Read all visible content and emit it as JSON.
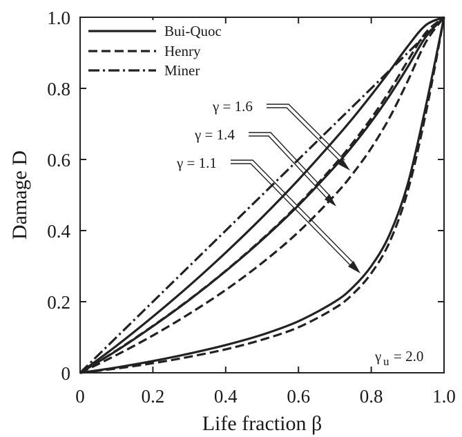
{
  "chart_data": {
    "type": "line",
    "xlabel": "Life fraction β",
    "ylabel": "Damage D",
    "xlim": [
      0,
      1
    ],
    "ylim": [
      0,
      1
    ],
    "x_ticks": [
      "0",
      "0.2",
      "0.4",
      "0.6",
      "0.8",
      "1.0"
    ],
    "y_ticks": [
      "0",
      "0.2",
      "0.4",
      "0.6",
      "0.8",
      "1.0"
    ],
    "grid": false,
    "legend_position": "top-left",
    "legend": [
      {
        "label": "Bui-Quoc",
        "style": "solid"
      },
      {
        "label": "Henry",
        "style": "dashed"
      },
      {
        "label": "Miner",
        "style": "dash-dot"
      }
    ],
    "annotations": {
      "gamma_labels": [
        "γ = 1.6",
        "γ = 1.4",
        "γ = 1.1"
      ],
      "gamma_u_symbol": "γ",
      "gamma_u_subscript": "u",
      "gamma_u_value": "=  2.0"
    },
    "x": [
      0,
      0.1,
      0.2,
      0.3,
      0.4,
      0.5,
      0.6,
      0.7,
      0.75,
      0.8,
      0.85,
      0.9,
      0.95,
      1.0
    ],
    "series": [
      {
        "legend": "Miner",
        "gamma": null,
        "style": "dash-dot",
        "values": [
          0,
          0.1,
          0.2,
          0.3,
          0.4,
          0.5,
          0.6,
          0.7,
          0.75,
          0.8,
          0.85,
          0.9,
          0.95,
          1.0
        ]
      },
      {
        "legend": "Bui-Quoc",
        "gamma": 1.6,
        "style": "solid",
        "values": [
          0,
          0.076,
          0.158,
          0.245,
          0.338,
          0.437,
          0.543,
          0.657,
          0.717,
          0.781,
          0.848,
          0.918,
          0.978,
          1.0
        ]
      },
      {
        "legend": "Henry",
        "gamma": 1.6,
        "style": "dashed",
        "values": [
          0,
          0.063,
          0.132,
          0.206,
          0.287,
          0.376,
          0.474,
          0.586,
          0.648,
          0.716,
          0.792,
          0.877,
          0.957,
          1.0
        ]
      },
      {
        "legend": "Bui-Quoc",
        "gamma": 1.4,
        "style": "solid",
        "values": [
          0,
          0.062,
          0.131,
          0.205,
          0.286,
          0.374,
          0.471,
          0.58,
          0.64,
          0.706,
          0.779,
          0.86,
          0.945,
          1.0
        ]
      },
      {
        "legend": "Henry",
        "gamma": 1.4,
        "style": "dashed",
        "values": [
          0,
          0.05,
          0.105,
          0.166,
          0.233,
          0.309,
          0.396,
          0.5,
          0.561,
          0.632,
          0.717,
          0.82,
          0.93,
          1.0
        ]
      },
      {
        "legend": "Bui-Quoc",
        "gamma": 1.1,
        "style": "solid",
        "values": [
          0,
          0.015,
          0.033,
          0.054,
          0.078,
          0.107,
          0.145,
          0.2,
          0.241,
          0.3,
          0.388,
          0.53,
          0.75,
          1.0
        ]
      },
      {
        "legend": "Henry",
        "gamma": 1.1,
        "style": "dashed",
        "values": [
          0,
          0.012,
          0.027,
          0.045,
          0.066,
          0.093,
          0.128,
          0.182,
          0.222,
          0.28,
          0.367,
          0.51,
          0.73,
          1.0
        ]
      }
    ]
  }
}
